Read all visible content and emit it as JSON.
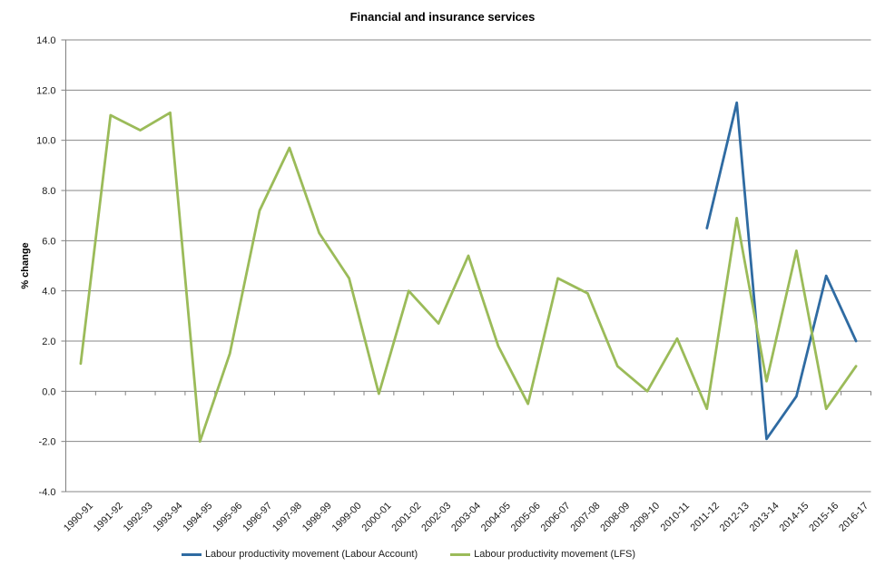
{
  "title": "Financial and insurance services",
  "colors": {
    "background": "#ffffff",
    "grid": "#878787",
    "axis": "#808080",
    "text": "#1a1a1a",
    "title": "#000000"
  },
  "chart_data": {
    "type": "line",
    "title": "Financial and insurance services",
    "ylabel": "% change",
    "xlabel": "",
    "ylim": [
      -4,
      14
    ],
    "y_tick_labels": [
      "14.0",
      "12.0",
      "10.0",
      "8.0",
      "6.0",
      "4.0",
      "2.0",
      "0.0",
      "-2.0",
      "-4.0"
    ],
    "grid": true,
    "legend_position": "bottom",
    "categories": [
      "1990-91",
      "1991-92",
      "1992-93",
      "1993-94",
      "1994-95",
      "1995-96",
      "1996-97",
      "1997-98",
      "1998-99",
      "1999-00",
      "2000-01",
      "2001-02",
      "2002-03",
      "2003-04",
      "2004-05",
      "2005-06",
      "2006-07",
      "2007-08",
      "2008-09",
      "2009-10",
      "2010-11",
      "2011-12",
      "2012-13",
      "2013-14",
      "2014-15",
      "2015-16",
      "2016-17"
    ],
    "series": [
      {
        "name": "Labour productivity movement (Labour Account)",
        "color": "#2F6BA2",
        "values": [
          null,
          null,
          null,
          null,
          null,
          null,
          null,
          null,
          null,
          null,
          null,
          null,
          null,
          null,
          null,
          null,
          null,
          null,
          null,
          null,
          null,
          6.5,
          11.5,
          -1.9,
          -0.2,
          4.6,
          2.0
        ]
      },
      {
        "name": "Labour productivity movement (LFS)",
        "color": "#9BBB59",
        "values": [
          1.1,
          11.0,
          10.4,
          11.1,
          -2.0,
          1.5,
          7.2,
          9.7,
          6.3,
          4.5,
          -0.1,
          4.0,
          2.7,
          5.4,
          1.8,
          -0.5,
          4.5,
          3.9,
          1.0,
          0.0,
          2.1,
          -0.7,
          6.9,
          0.4,
          5.6,
          -0.7,
          1.0
        ]
      }
    ]
  }
}
